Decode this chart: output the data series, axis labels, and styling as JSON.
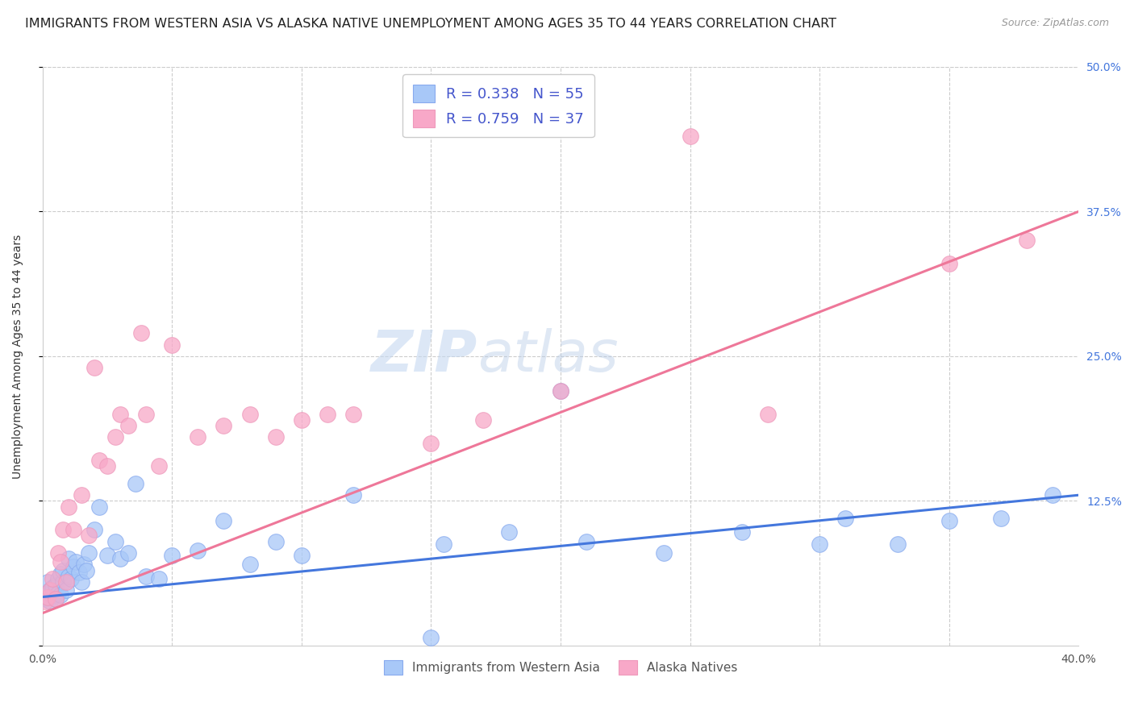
{
  "title": "IMMIGRANTS FROM WESTERN ASIA VS ALASKA NATIVE UNEMPLOYMENT AMONG AGES 35 TO 44 YEARS CORRELATION CHART",
  "source": "Source: ZipAtlas.com",
  "ylabel": "Unemployment Among Ages 35 to 44 years",
  "xlim": [
    0.0,
    0.4
  ],
  "ylim": [
    0.0,
    0.5
  ],
  "xticks": [
    0.0,
    0.05,
    0.1,
    0.15,
    0.2,
    0.25,
    0.3,
    0.35,
    0.4
  ],
  "xticklabels": [
    "0.0%",
    "",
    "",
    "",
    "",
    "",
    "",
    "",
    "40.0%"
  ],
  "yticks_right": [
    0.0,
    0.125,
    0.25,
    0.375,
    0.5
  ],
  "yticklabels_right": [
    "",
    "12.5%",
    "25.0%",
    "37.5%",
    "50.0%"
  ],
  "blue_R": "0.338",
  "blue_N": "55",
  "pink_R": "0.759",
  "pink_N": "37",
  "blue_color": "#a8c8f8",
  "pink_color": "#f8a8c8",
  "blue_line_color": "#4477dd",
  "pink_line_color": "#ee7799",
  "blue_edge_color": "#88aaee",
  "pink_edge_color": "#ee99bb",
  "watermark_text": "ZIP",
  "watermark_text2": "atlas",
  "legend_label_blue": "Immigrants from Western Asia",
  "legend_label_pink": "Alaska Natives",
  "title_fontsize": 11.5,
  "label_fontsize": 10,
  "tick_fontsize": 10,
  "background_color": "#ffffff",
  "grid_color": "#cccccc",
  "blue_scatter_x": [
    0.001,
    0.002,
    0.002,
    0.003,
    0.003,
    0.004,
    0.004,
    0.005,
    0.005,
    0.006,
    0.006,
    0.007,
    0.007,
    0.008,
    0.008,
    0.009,
    0.01,
    0.01,
    0.011,
    0.012,
    0.013,
    0.014,
    0.015,
    0.016,
    0.017,
    0.018,
    0.02,
    0.022,
    0.025,
    0.028,
    0.03,
    0.033,
    0.036,
    0.04,
    0.045,
    0.05,
    0.06,
    0.07,
    0.08,
    0.09,
    0.1,
    0.12,
    0.15,
    0.155,
    0.18,
    0.2,
    0.21,
    0.24,
    0.27,
    0.3,
    0.31,
    0.33,
    0.35,
    0.37,
    0.39
  ],
  "blue_scatter_y": [
    0.04,
    0.042,
    0.055,
    0.038,
    0.048,
    0.043,
    0.05,
    0.04,
    0.052,
    0.045,
    0.058,
    0.062,
    0.044,
    0.055,
    0.065,
    0.048,
    0.06,
    0.075,
    0.058,
    0.068,
    0.072,
    0.063,
    0.055,
    0.07,
    0.065,
    0.08,
    0.1,
    0.12,
    0.078,
    0.09,
    0.075,
    0.08,
    0.14,
    0.06,
    0.058,
    0.078,
    0.082,
    0.108,
    0.07,
    0.09,
    0.078,
    0.13,
    0.007,
    0.088,
    0.098,
    0.22,
    0.09,
    0.08,
    0.098,
    0.088,
    0.11,
    0.088,
    0.108,
    0.11,
    0.13
  ],
  "pink_scatter_x": [
    0.001,
    0.002,
    0.003,
    0.004,
    0.005,
    0.006,
    0.007,
    0.008,
    0.009,
    0.01,
    0.012,
    0.015,
    0.018,
    0.02,
    0.022,
    0.025,
    0.028,
    0.03,
    0.033,
    0.038,
    0.04,
    0.045,
    0.05,
    0.06,
    0.07,
    0.08,
    0.09,
    0.1,
    0.11,
    0.12,
    0.15,
    0.17,
    0.2,
    0.25,
    0.28,
    0.35,
    0.38
  ],
  "pink_scatter_y": [
    0.038,
    0.042,
    0.048,
    0.058,
    0.04,
    0.08,
    0.072,
    0.1,
    0.055,
    0.12,
    0.1,
    0.13,
    0.095,
    0.24,
    0.16,
    0.155,
    0.18,
    0.2,
    0.19,
    0.27,
    0.2,
    0.155,
    0.26,
    0.18,
    0.19,
    0.2,
    0.18,
    0.195,
    0.2,
    0.2,
    0.175,
    0.195,
    0.22,
    0.44,
    0.2,
    0.33,
    0.35
  ],
  "blue_trend_x": [
    0.0,
    0.4
  ],
  "blue_trend_y": [
    0.042,
    0.13
  ],
  "pink_trend_x": [
    0.0,
    0.4
  ],
  "pink_trend_y": [
    0.028,
    0.375
  ]
}
